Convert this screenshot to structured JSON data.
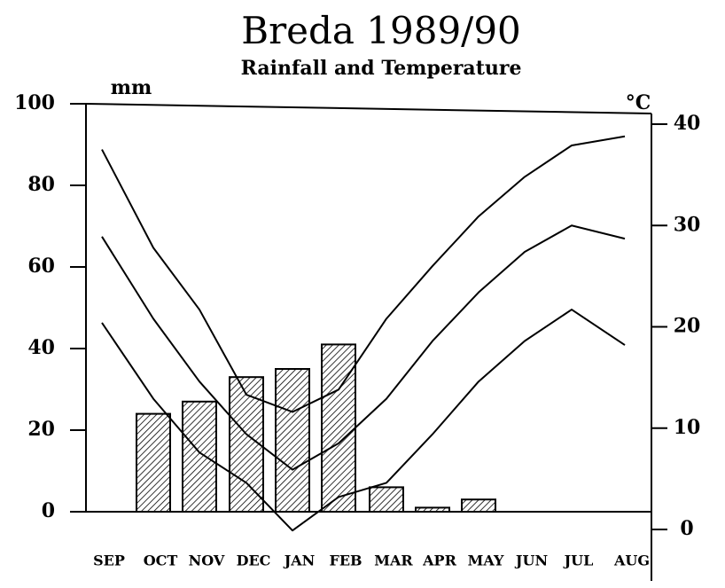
{
  "chart_data": {
    "type": "bar",
    "title": "Breda   1989/90",
    "subtitle": "Rainfall and Temperature",
    "y_label": "mm",
    "y2_label": "°C",
    "categories": [
      "SEP",
      "OCT",
      "NOV",
      "DEC",
      "JAN",
      "FEB",
      "MAR",
      "APR",
      "MAY",
      "JUN",
      "JUL",
      "AUG"
    ],
    "values": [
      null,
      24,
      27,
      33,
      35,
      41,
      6,
      1,
      3,
      null,
      null,
      null
    ],
    "color": "#000000",
    "ylim": [
      0,
      100
    ],
    "yticks": [
      0,
      20,
      40,
      60,
      80,
      100
    ],
    "y2lim": [
      0,
      40
    ],
    "y2ticks": [
      0,
      10,
      20,
      30,
      40
    ],
    "series": [
      {
        "color": "#000000",
        "axis": "y2",
        "values": [
          37.5,
          27.8,
          21.7,
          13.3,
          11.6,
          13.8,
          20.8,
          26,
          30.9,
          34.8,
          37.9,
          38.8
        ]
      },
      {
        "color": "#000000",
        "axis": "y2",
        "values": [
          28.9,
          20.8,
          14.6,
          9.4,
          5.9,
          8.5,
          12.9,
          18.6,
          23.4,
          27.4,
          30,
          28.7
        ]
      },
      {
        "color": "#000000",
        "axis": "y2",
        "values": [
          20.4,
          12.9,
          7.6,
          4.6,
          -0.1,
          3.2,
          4.6,
          9.4,
          14.6,
          18.6,
          21.7,
          18.2
        ]
      }
    ]
  }
}
